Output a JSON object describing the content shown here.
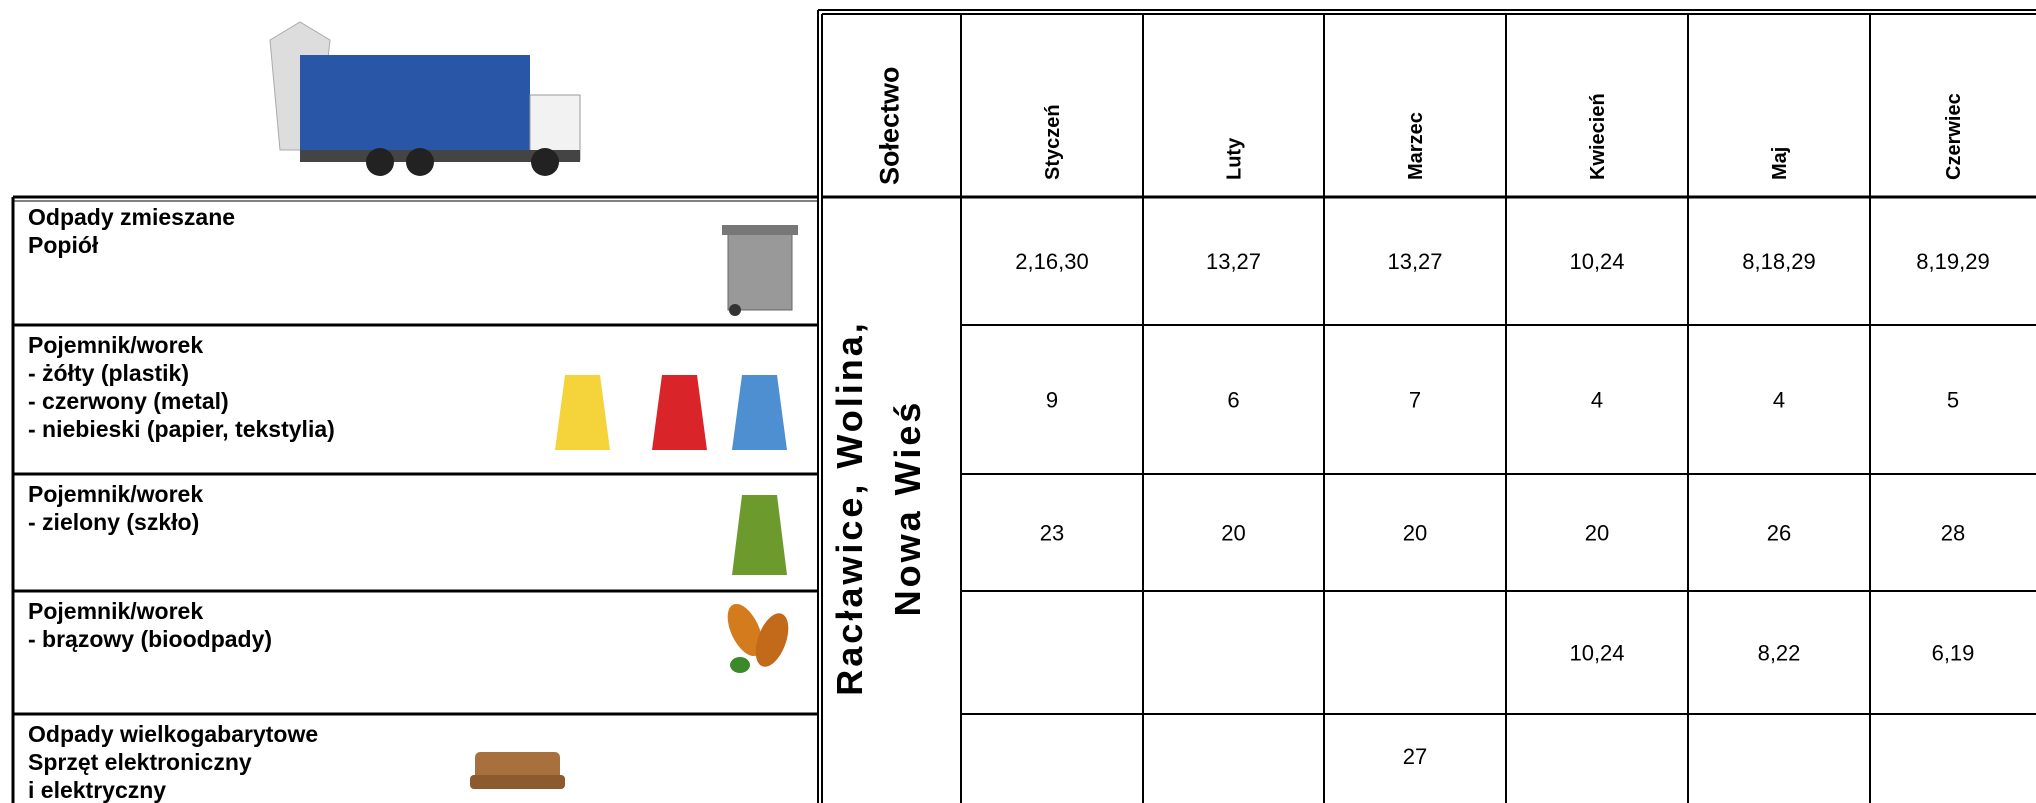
{
  "header": {
    "column_label": "Sołectwo",
    "months": [
      "Styczeń",
      "Luty",
      "Marzec",
      "Kwiecień",
      "Maj",
      "Czerwiec"
    ]
  },
  "village_lines": [
    "Racławice, Wolina,",
    "Nowa Wieś"
  ],
  "rows": [
    {
      "label_lines": [
        "Odpady zmieszane",
        "Popiół"
      ],
      "dates": [
        "2,16,30",
        "13,27",
        "13,27",
        "10,24",
        "8,18,29",
        "8,19,29"
      ]
    },
    {
      "label_lines": [
        "Pojemnik/worek",
        "- żółty (plastik)",
        "- czerwony (metal)",
        "- niebieski (papier, tekstylia)"
      ],
      "dates": [
        "9",
        "6",
        "7",
        "4",
        "4",
        "5"
      ]
    },
    {
      "label_lines": [
        "Pojemnik/worek",
        "- zielony (szkło)"
      ],
      "dates": [
        "23",
        "20",
        "20",
        "20",
        "26",
        "28"
      ]
    },
    {
      "label_lines": [
        "Pojemnik/worek",
        "- brązowy (bioodpady)"
      ],
      "dates": [
        null,
        null,
        null,
        "10,24",
        "8,22",
        "6,19"
      ]
    },
    {
      "label_lines": [
        "Odpady wielkogabarytowe",
        "Sprzęt elektroniczny",
        "i elektryczny"
      ],
      "dates": [
        null,
        null,
        "27",
        null,
        null,
        null
      ]
    }
  ]
}
